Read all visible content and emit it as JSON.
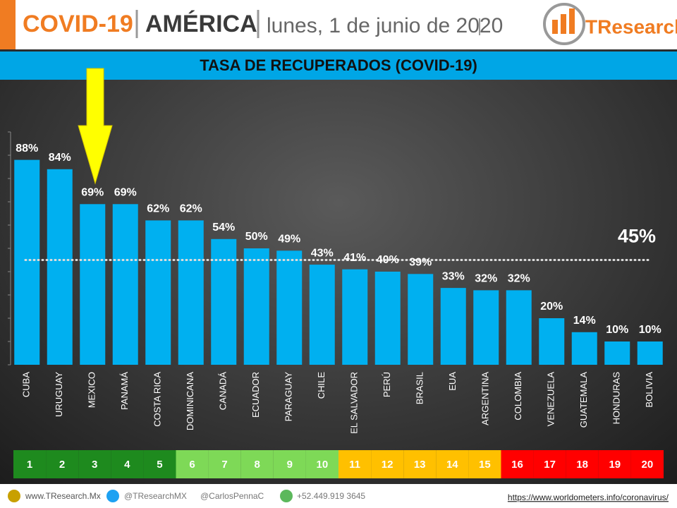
{
  "header": {
    "topic": "COVID-19",
    "region": "AMÉRICA",
    "date": "lunes, 1 de junio de 2020",
    "logo": "TResearch"
  },
  "footer": {
    "website": "www.TResearch.Mx",
    "twitter": "@TResearchMX",
    "twitter2": "@CarlosPennaC",
    "phone": "+52.449.919 3645",
    "source": "https://www.worldometers.info/coronavirus/"
  },
  "chart_data": {
    "type": "bar",
    "title": "TASA DE RECUPERADOS (COVID-19)",
    "categories": [
      "CUBA",
      "URUGUAY",
      "MEXICO",
      "PANAMÁ",
      "COSTA RICA",
      "DOMINICANA",
      "CANADÁ",
      "ECUADOR",
      "PARAGUAY",
      "CHILE",
      "EL SALVADOR",
      "PERÚ",
      "BRASIL",
      "EUA",
      "ARGENTINA",
      "COLOMBIA",
      "VENEZUELA",
      "GUATEMALA",
      "HONDURAS",
      "BOLIVIA"
    ],
    "values": [
      88,
      84,
      69,
      69,
      62,
      62,
      54,
      50,
      49,
      43,
      41,
      40,
      39,
      33,
      32,
      32,
      20,
      14,
      10,
      10
    ],
    "value_labels": [
      "88%",
      "84%",
      "69%",
      "69%",
      "62%",
      "62%",
      "54%",
      "50%",
      "49%",
      "43%",
      "41%",
      "40%",
      "39%",
      "33%",
      "32%",
      "32%",
      "20%",
      "14%",
      "10%",
      "10%"
    ],
    "color": "#00b0f0",
    "ylim": [
      0,
      100
    ],
    "yticks": [
      0,
      10,
      20,
      30,
      40,
      50,
      60,
      70,
      80,
      90,
      100
    ],
    "average": 45,
    "average_label": "45%",
    "ranks": [
      1,
      2,
      3,
      4,
      5,
      6,
      7,
      8,
      9,
      10,
      11,
      12,
      13,
      14,
      15,
      16,
      17,
      18,
      19,
      20
    ],
    "rank_colors": [
      "#1e8a1e",
      "#1e8a1e",
      "#1e8a1e",
      "#1e8a1e",
      "#1e8a1e",
      "#7ed957",
      "#7ed957",
      "#7ed957",
      "#7ed957",
      "#7ed957",
      "#ffc000",
      "#ffc000",
      "#ffc000",
      "#ffc000",
      "#ffc000",
      "#ff0000",
      "#ff0000",
      "#ff0000",
      "#ff0000",
      "#ff0000"
    ]
  }
}
